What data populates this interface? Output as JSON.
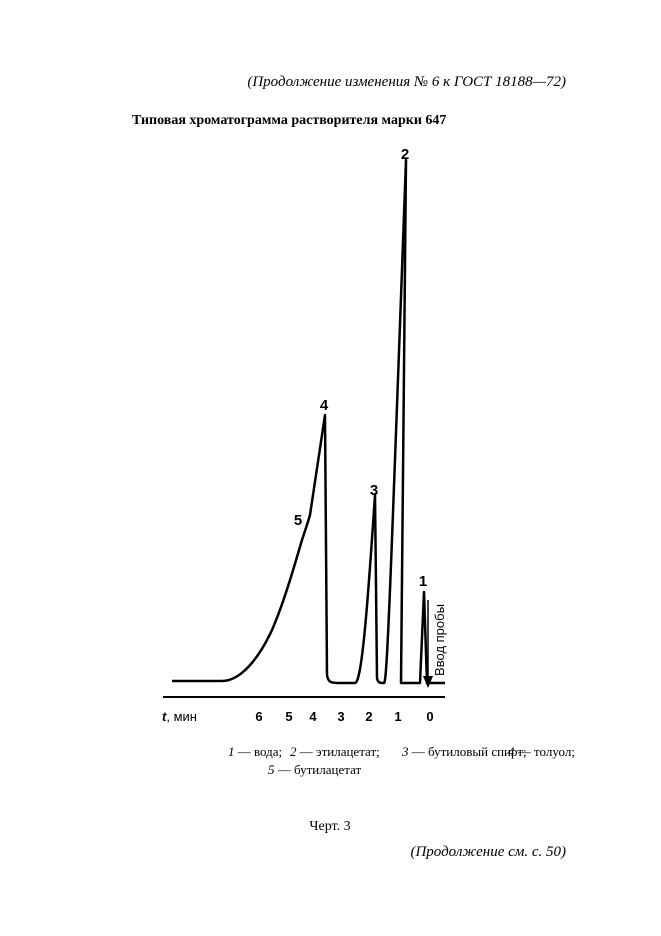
{
  "header": "(Продолжение изменения № 6 к ГОСТ 18188—72)",
  "title": "Типовая хроматограмма растворителя марки  647",
  "figure": {
    "peak_labels": [
      "1",
      "2",
      "3",
      "4",
      "5"
    ],
    "axis_label": {
      "symbol": "t",
      "unit": ", мин"
    },
    "axis_ticks": [
      6,
      5,
      4,
      3,
      2,
      1,
      0
    ],
    "injection_label": "Ввод пробы"
  },
  "legend": [
    {
      "number": 1,
      "text": "— вода;"
    },
    {
      "number": 2,
      "text": "— этилацетат;"
    },
    {
      "number": 3,
      "text": "— бутиловый  спирт;"
    },
    {
      "number": 4,
      "text": "— толуол;"
    },
    {
      "number": 5,
      "text": "— бутилацетат"
    }
  ],
  "caption": "Черт. 3",
  "footer": "(Продолжение см. с. 50)"
}
